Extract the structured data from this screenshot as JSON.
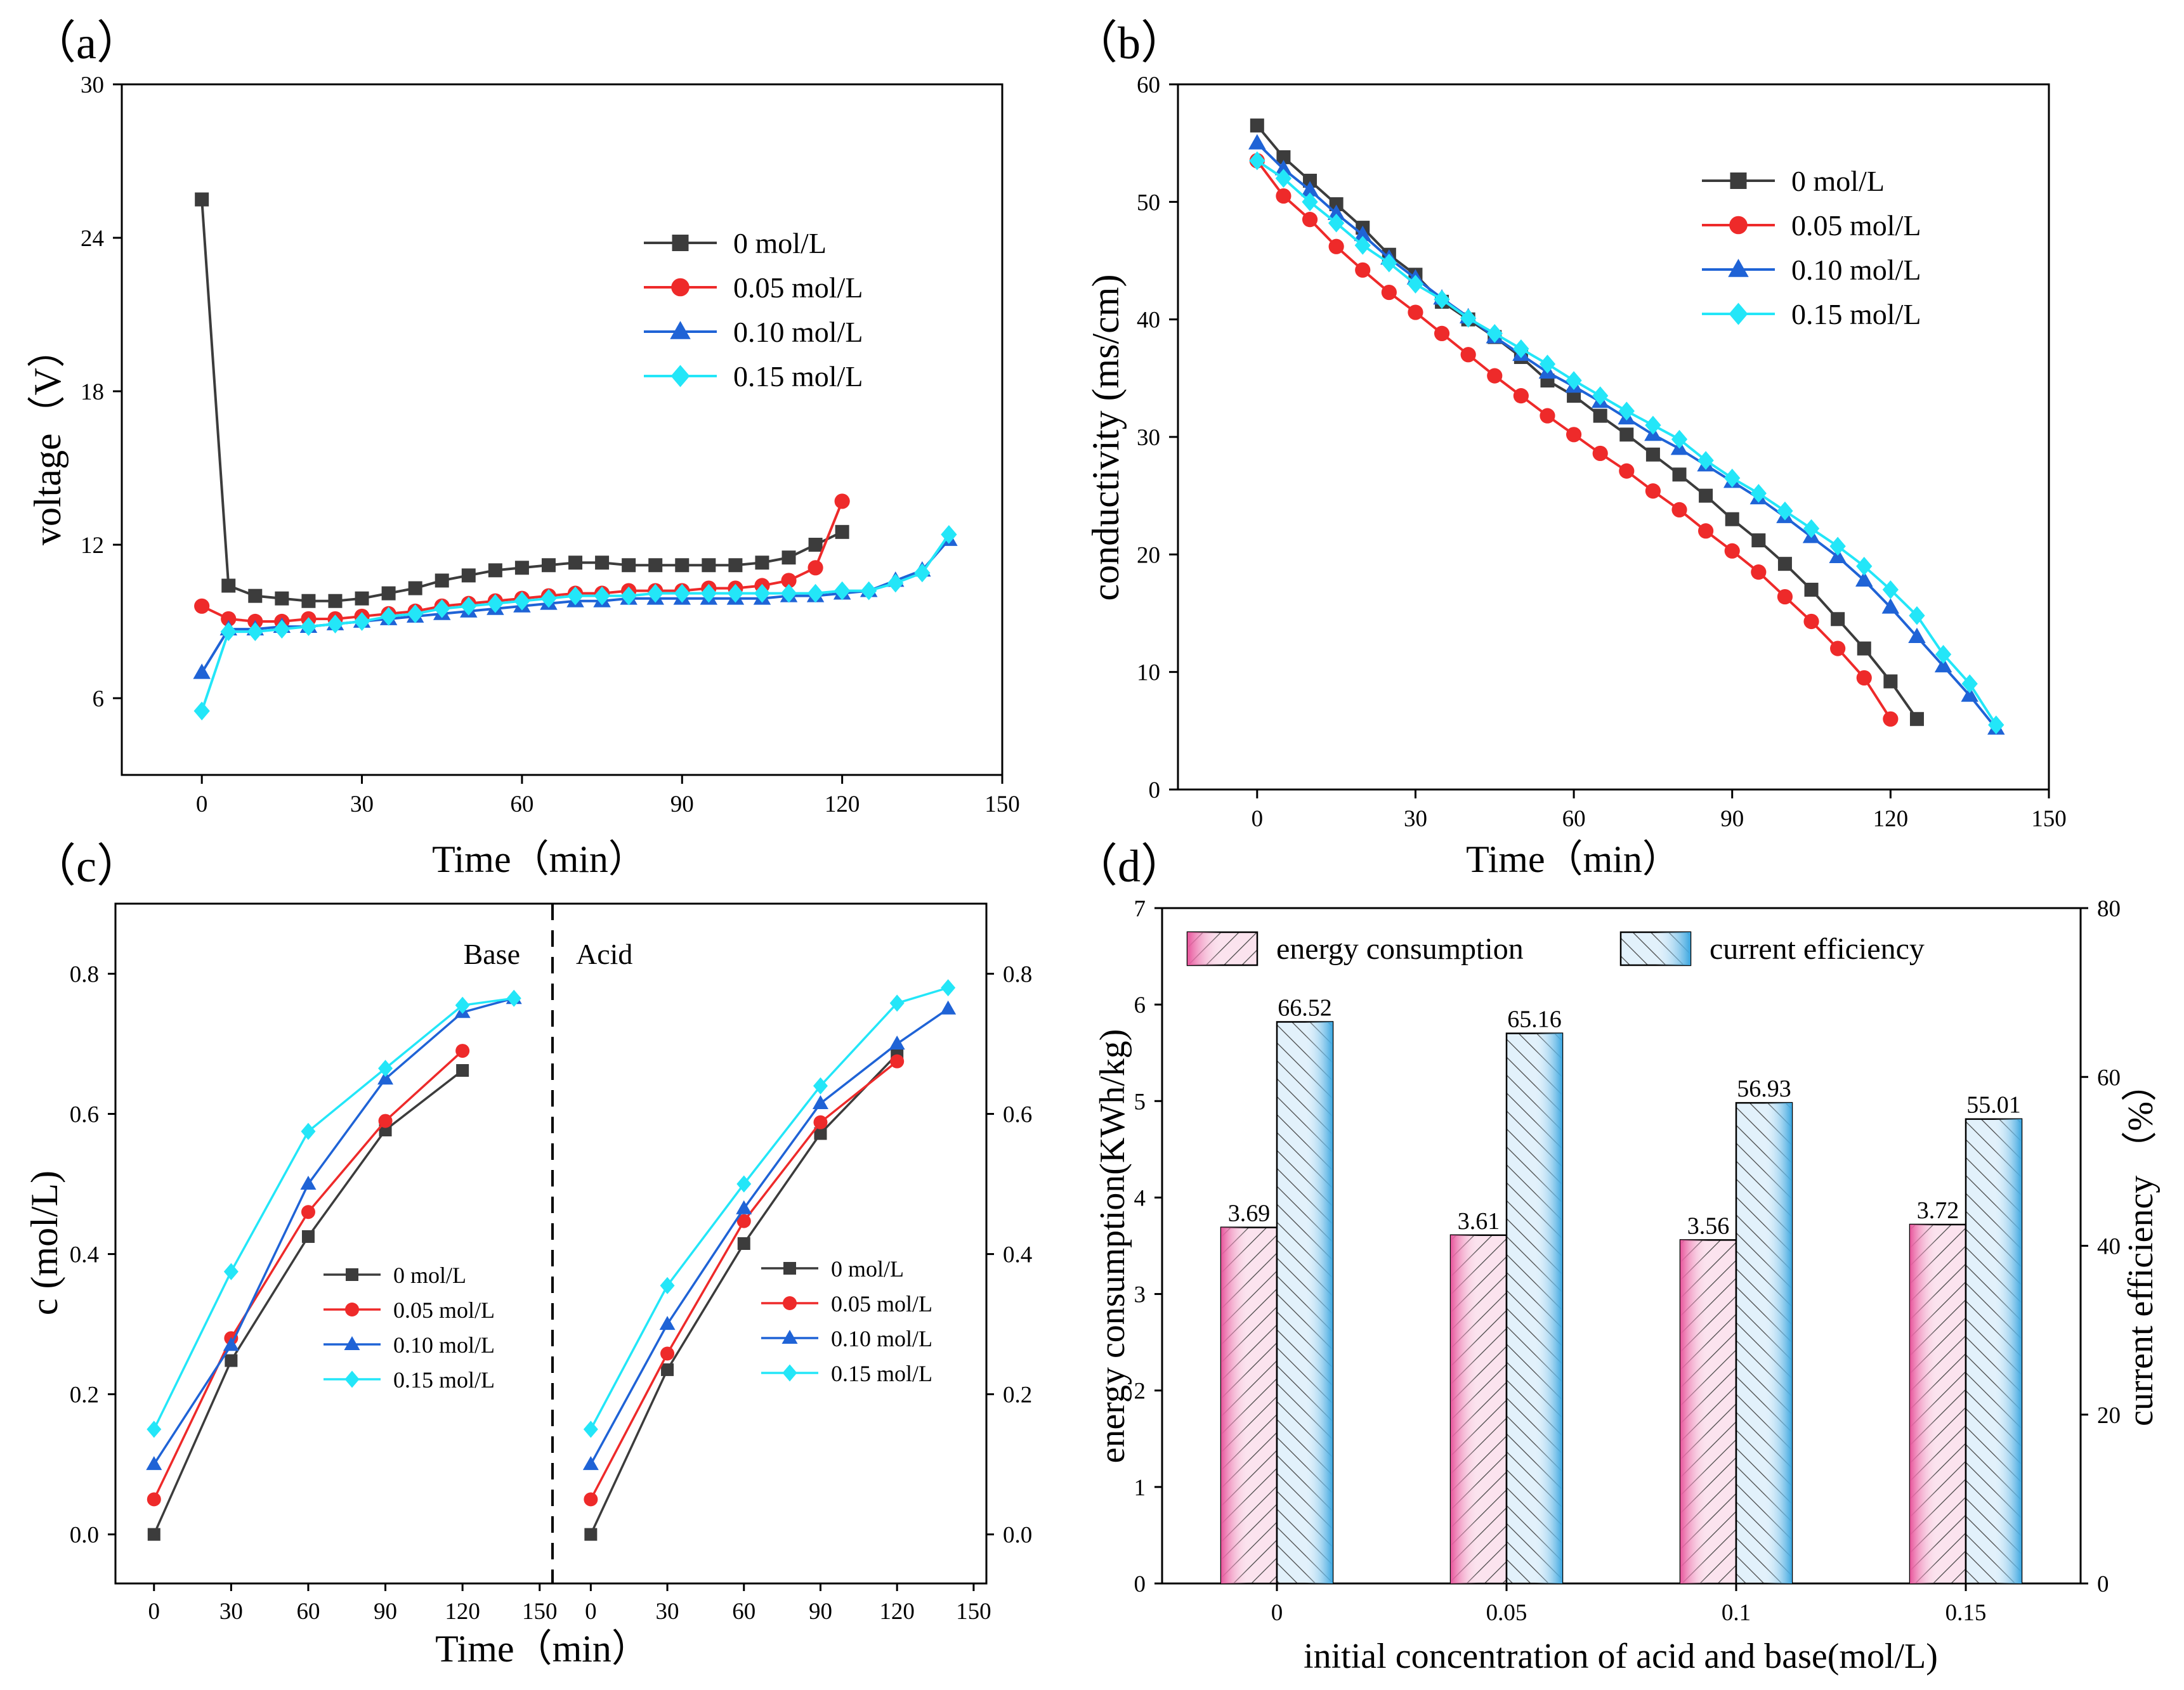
{
  "series_styles": [
    {
      "name": "0 mol/L",
      "color": "#3c3c3c",
      "marker": "square"
    },
    {
      "name": "0.05 mol/L",
      "color": "#ee2a2a",
      "marker": "circle"
    },
    {
      "name": "0.10 mol/L",
      "color": "#1f63d6",
      "marker": "triangle"
    },
    {
      "name": "0.15 mol/L",
      "color": "#23e6f8",
      "marker": "diamond"
    }
  ],
  "bar_colors": {
    "energy": "#e8559c",
    "efficiency": "#3aa6e0"
  },
  "chart_data": [
    {
      "id": "a",
      "panel_label": "（a）",
      "type": "line",
      "xlabel": "Time（min）",
      "ylabel": "voltage（V）",
      "xlim": [
        -15,
        150
      ],
      "ylim": [
        3,
        30
      ],
      "xticks": [
        0,
        30,
        60,
        90,
        120,
        150
      ],
      "yticks": [
        6,
        12,
        18,
        24,
        30
      ],
      "legend_position": "upper-right",
      "series": [
        {
          "name": "0 mol/L",
          "x": [
            0,
            5,
            10,
            15,
            20,
            25,
            30,
            35,
            40,
            45,
            50,
            55,
            60,
            65,
            70,
            75,
            80,
            85,
            90,
            95,
            100,
            105,
            110,
            115,
            120
          ],
          "y": [
            25.5,
            10.4,
            10.0,
            9.9,
            9.8,
            9.8,
            9.9,
            10.1,
            10.3,
            10.6,
            10.8,
            11.0,
            11.1,
            11.2,
            11.3,
            11.3,
            11.2,
            11.2,
            11.2,
            11.2,
            11.2,
            11.3,
            11.5,
            12.0,
            12.5
          ]
        },
        {
          "name": "0.05 mol/L",
          "x": [
            0,
            5,
            10,
            15,
            20,
            25,
            30,
            35,
            40,
            45,
            50,
            55,
            60,
            65,
            70,
            75,
            80,
            85,
            90,
            95,
            100,
            105,
            110,
            115,
            120
          ],
          "y": [
            9.6,
            9.1,
            9.0,
            9.0,
            9.1,
            9.1,
            9.2,
            9.3,
            9.4,
            9.6,
            9.7,
            9.8,
            9.9,
            10.0,
            10.1,
            10.1,
            10.2,
            10.2,
            10.2,
            10.3,
            10.3,
            10.4,
            10.6,
            11.1,
            13.7
          ]
        },
        {
          "name": "0.10 mol/L",
          "x": [
            0,
            5,
            10,
            15,
            20,
            25,
            30,
            35,
            40,
            45,
            50,
            55,
            60,
            65,
            70,
            75,
            80,
            85,
            90,
            95,
            100,
            105,
            110,
            115,
            120,
            125,
            130,
            135,
            140
          ],
          "y": [
            7.0,
            8.7,
            8.7,
            8.8,
            8.8,
            8.9,
            9.0,
            9.1,
            9.2,
            9.3,
            9.4,
            9.5,
            9.6,
            9.7,
            9.8,
            9.8,
            9.9,
            9.9,
            9.9,
            9.9,
            9.9,
            9.9,
            10.0,
            10.0,
            10.1,
            10.2,
            10.6,
            11.0,
            12.2
          ]
        },
        {
          "name": "0.15 mol/L",
          "x": [
            0,
            5,
            10,
            15,
            20,
            25,
            30,
            35,
            40,
            45,
            50,
            55,
            60,
            65,
            70,
            75,
            80,
            85,
            90,
            95,
            100,
            105,
            110,
            115,
            120,
            125,
            130,
            135,
            140
          ],
          "y": [
            5.5,
            8.6,
            8.6,
            8.7,
            8.8,
            8.9,
            9.0,
            9.2,
            9.3,
            9.5,
            9.6,
            9.7,
            9.8,
            9.9,
            10.0,
            10.0,
            10.0,
            10.1,
            10.1,
            10.1,
            10.1,
            10.1,
            10.1,
            10.1,
            10.2,
            10.2,
            10.5,
            10.9,
            12.4
          ]
        }
      ]
    },
    {
      "id": "b",
      "panel_label": "（b）",
      "type": "line",
      "xlabel": "Time（min）",
      "ylabel": "conductivity (ms/cm)",
      "xlim": [
        -15,
        150
      ],
      "ylim": [
        0,
        60
      ],
      "xticks": [
        0,
        30,
        60,
        90,
        120,
        150
      ],
      "yticks": [
        0,
        10,
        20,
        30,
        40,
        50,
        60
      ],
      "legend_position": "upper-right",
      "series": [
        {
          "name": "0 mol/L",
          "x": [
            0,
            5,
            10,
            15,
            20,
            25,
            30,
            35,
            40,
            45,
            50,
            55,
            60,
            65,
            70,
            75,
            80,
            85,
            90,
            95,
            100,
            105,
            110,
            115,
            120,
            125
          ],
          "y": [
            56.5,
            53.8,
            51.8,
            49.8,
            47.8,
            45.5,
            43.8,
            41.5,
            40.0,
            38.5,
            36.8,
            34.8,
            33.5,
            31.8,
            30.2,
            28.5,
            26.8,
            25.0,
            23.0,
            21.2,
            19.2,
            17.0,
            14.5,
            12.0,
            9.2,
            6.0
          ]
        },
        {
          "name": "0.05 mol/L",
          "x": [
            0,
            5,
            10,
            15,
            20,
            25,
            30,
            35,
            40,
            45,
            50,
            55,
            60,
            65,
            70,
            75,
            80,
            85,
            90,
            95,
            100,
            105,
            110,
            115,
            120
          ],
          "y": [
            53.5,
            50.5,
            48.5,
            46.2,
            44.2,
            42.3,
            40.6,
            38.8,
            37.0,
            35.2,
            33.5,
            31.8,
            30.2,
            28.6,
            27.1,
            25.4,
            23.8,
            22.0,
            20.3,
            18.5,
            16.4,
            14.3,
            12.0,
            9.5,
            6.0
          ]
        },
        {
          "name": "0.10 mol/L",
          "x": [
            0,
            5,
            10,
            15,
            20,
            25,
            30,
            35,
            40,
            45,
            50,
            55,
            60,
            65,
            70,
            75,
            80,
            85,
            90,
            95,
            100,
            105,
            110,
            115,
            120,
            125,
            130,
            135,
            140
          ],
          "y": [
            55.0,
            52.8,
            51.0,
            49.0,
            47.2,
            45.2,
            43.5,
            41.8,
            40.2,
            38.5,
            37.0,
            35.5,
            34.3,
            33.0,
            31.6,
            30.2,
            29.0,
            27.6,
            26.2,
            24.8,
            23.2,
            21.5,
            19.8,
            17.8,
            15.5,
            13.0,
            10.5,
            8.0,
            5.2
          ]
        },
        {
          "name": "0.15 mol/L",
          "x": [
            0,
            5,
            10,
            15,
            20,
            25,
            30,
            35,
            40,
            45,
            50,
            55,
            60,
            65,
            70,
            75,
            80,
            85,
            90,
            95,
            100,
            105,
            110,
            115,
            120,
            125,
            130,
            135,
            140
          ],
          "y": [
            53.5,
            52.0,
            50.0,
            48.2,
            46.3,
            44.8,
            43.0,
            41.7,
            40.1,
            38.8,
            37.5,
            36.2,
            34.8,
            33.5,
            32.2,
            31.0,
            29.8,
            28.0,
            26.5,
            25.2,
            23.7,
            22.2,
            20.7,
            19.0,
            17.0,
            14.8,
            11.5,
            9.0,
            5.5
          ]
        }
      ]
    },
    {
      "id": "c",
      "panel_label": "（c）",
      "type": "line",
      "xlabel": "Time（min）",
      "ylabel": "c (mol/L)",
      "ylim": [
        -0.07,
        0.9
      ],
      "yticks": [
        0.0,
        0.2,
        0.4,
        0.6,
        0.8
      ],
      "xlim": [
        -15,
        155
      ],
      "xticks": [
        0,
        30,
        60,
        90,
        120,
        150
      ],
      "subplots": [
        {
          "label": "Base",
          "series": [
            {
              "name": "0 mol/L",
              "x": [
                0,
                30,
                60,
                90,
                120
              ],
              "y": [
                0.0,
                0.248,
                0.425,
                0.577,
                0.662
              ]
            },
            {
              "name": "0.05 mol/L",
              "x": [
                0,
                30,
                60,
                90,
                120
              ],
              "y": [
                0.05,
                0.28,
                0.46,
                0.59,
                0.69
              ]
            },
            {
              "name": "0.10 mol/L",
              "x": [
                0,
                30,
                60,
                90,
                120,
                140
              ],
              "y": [
                0.1,
                0.27,
                0.5,
                0.65,
                0.745,
                0.765
              ]
            },
            {
              "name": "0.15 mol/L",
              "x": [
                0,
                30,
                60,
                90,
                120,
                140
              ],
              "y": [
                0.15,
                0.375,
                0.575,
                0.665,
                0.755,
                0.765
              ]
            }
          ]
        },
        {
          "label": "Acid",
          "series": [
            {
              "name": "0 mol/L",
              "x": [
                0,
                30,
                60,
                90,
                120
              ],
              "y": [
                0.0,
                0.235,
                0.415,
                0.572,
                0.685
              ]
            },
            {
              "name": "0.05 mol/L",
              "x": [
                0,
                30,
                60,
                90,
                120
              ],
              "y": [
                0.05,
                0.258,
                0.447,
                0.588,
                0.675
              ]
            },
            {
              "name": "0.10 mol/L",
              "x": [
                0,
                30,
                60,
                90,
                120,
                140
              ],
              "y": [
                0.1,
                0.3,
                0.465,
                0.615,
                0.7,
                0.75
              ]
            },
            {
              "name": "0.15 mol/L",
              "x": [
                0,
                30,
                60,
                90,
                120,
                140
              ],
              "y": [
                0.15,
                0.355,
                0.5,
                0.64,
                0.758,
                0.78
              ]
            }
          ]
        }
      ]
    },
    {
      "id": "d",
      "panel_label": "（d）",
      "type": "bar",
      "categories": [
        "0",
        "0.05",
        "0.1",
        "0.15"
      ],
      "xlabel": "initial concentration of acid and base(mol/L)",
      "ylabel": "energy consumption(KWh/kg)",
      "y2label": "current efficiency （%）",
      "ylim": [
        0,
        7
      ],
      "y2lim": [
        0,
        80
      ],
      "yticks": [
        0,
        1,
        2,
        3,
        4,
        5,
        6,
        7
      ],
      "y2ticks": [
        0,
        20,
        40,
        60,
        80
      ],
      "series": [
        {
          "name": "energy consumption",
          "axis": "left",
          "values": [
            3.69,
            3.61,
            3.56,
            3.72
          ],
          "labels": [
            "3.69",
            "3.61",
            "3.56",
            "3.72"
          ]
        },
        {
          "name": "current efficiency",
          "axis": "right",
          "values": [
            66.52,
            65.16,
            56.93,
            55.01
          ],
          "labels": [
            "66.52",
            "65.16",
            "56.93",
            "55.01"
          ]
        }
      ]
    }
  ]
}
